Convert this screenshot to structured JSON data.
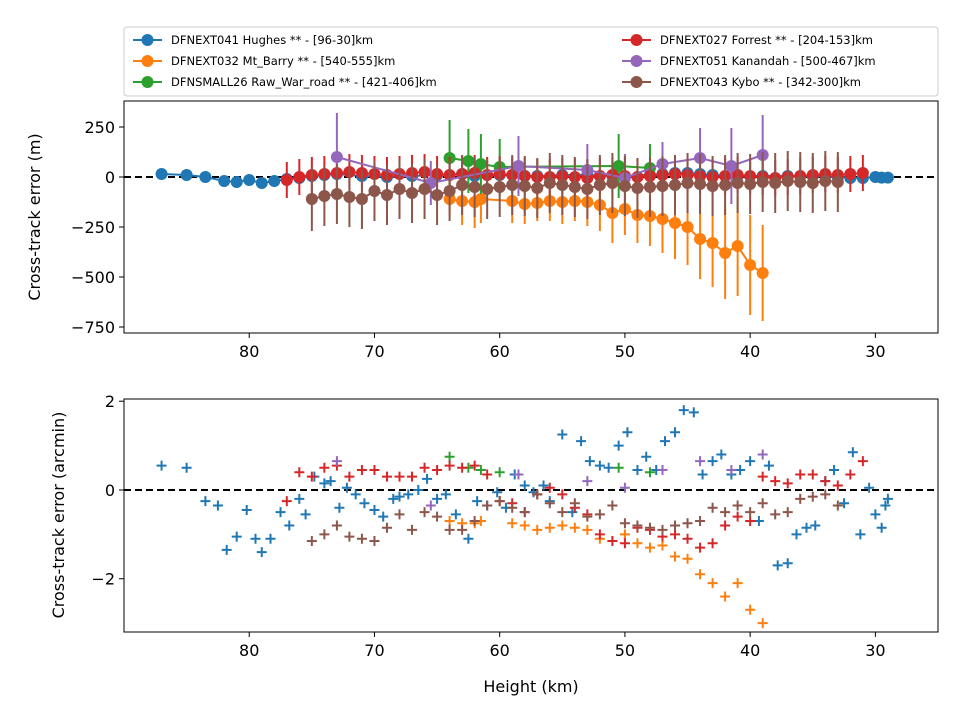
{
  "chart_data": [
    {
      "type": "line",
      "title": "",
      "xlabel": "",
      "ylabel": "Cross-track error (m)",
      "xlim": [
        90,
        25
      ],
      "ylim": [
        -780,
        380
      ],
      "xticks": [
        80,
        70,
        60,
        50,
        40,
        30
      ],
      "xtick_labels": [
        "80",
        "70",
        "60",
        "50",
        "40",
        "30"
      ],
      "yticks": [
        250,
        0,
        -250,
        -500,
        -750
      ],
      "ytick_labels": [
        "250",
        "0",
        "−250",
        "−500",
        "−750"
      ],
      "reference_line": 0,
      "legend_position": "top (above axes, two columns)",
      "series": [
        {
          "name": "DFNEXT041 Hughes **  - [96-30]km",
          "color": "#1f77b4",
          "x": [
            87,
            85,
            83.5,
            82,
            81,
            80,
            79,
            78,
            77,
            76,
            75,
            74,
            73,
            71,
            69,
            67,
            65,
            63,
            62,
            60,
            58,
            57,
            55,
            53,
            51,
            48,
            47,
            46,
            45,
            44,
            43,
            41,
            39,
            37,
            35,
            33,
            32,
            31,
            30,
            29.5,
            29
          ],
          "y": [
            15,
            10,
            0,
            -20,
            -25,
            -15,
            -30,
            -20,
            -10,
            -5,
            5,
            10,
            15,
            5,
            0,
            5,
            10,
            15,
            5,
            10,
            5,
            5,
            10,
            10,
            5,
            10,
            15,
            20,
            20,
            15,
            10,
            5,
            5,
            5,
            5,
            0,
            -5,
            -5,
            0,
            -3,
            -3
          ],
          "err": [
            25,
            25,
            25,
            25,
            25,
            25,
            25,
            25,
            25,
            25,
            25,
            25,
            25,
            25,
            25,
            25,
            25,
            25,
            25,
            25,
            25,
            25,
            25,
            25,
            25,
            25,
            25,
            25,
            25,
            25,
            25,
            25,
            25,
            25,
            25,
            25,
            20,
            20,
            15,
            15,
            15
          ]
        },
        {
          "name": "DFNEXT032 Mt_Barry **  - [540-555]km",
          "color": "#ff7f0e",
          "x": [
            64,
            63,
            62,
            61.5,
            59,
            58,
            57,
            56,
            55,
            54,
            53,
            52,
            51,
            50,
            49,
            48,
            47,
            46,
            45,
            44,
            43,
            42,
            41,
            40,
            39
          ],
          "y": [
            -110,
            -120,
            -125,
            -110,
            -120,
            -135,
            -130,
            -120,
            -125,
            -120,
            -125,
            -140,
            -180,
            -160,
            -190,
            -195,
            -210,
            -230,
            -250,
            -310,
            -330,
            -380,
            -345,
            -440,
            -480
          ],
          "err": [
            80,
            120,
            130,
            120,
            110,
            100,
            90,
            100,
            110,
            100,
            120,
            130,
            150,
            130,
            140,
            150,
            170,
            180,
            190,
            200,
            220,
            230,
            250,
            250,
            240
          ]
        },
        {
          "name": "DFNSMALL26 Raw_War_road **  - [421-406]km",
          "color": "#2ca02c",
          "x": [
            64,
            62.5,
            61.5,
            60,
            50.5,
            48
          ],
          "y": [
            95,
            80,
            65,
            50,
            55,
            45
          ],
          "err": [
            190,
            160,
            150,
            140,
            160,
            120
          ]
        },
        {
          "name": "DFNEXT027 Forrest **  - [204-153]km",
          "color": "#d62728",
          "x": [
            77,
            76,
            75,
            74,
            73,
            72,
            71,
            70,
            69,
            68,
            67,
            66,
            65,
            64,
            63,
            62,
            61,
            60,
            59,
            58,
            57,
            56,
            55,
            54,
            53,
            52,
            51,
            50,
            49,
            48,
            47,
            46,
            45,
            44,
            43,
            42,
            41,
            40,
            39,
            38,
            37,
            36,
            35,
            34,
            33,
            32,
            31
          ],
          "y": [
            -15,
            0,
            10,
            15,
            20,
            25,
            20,
            15,
            10,
            15,
            20,
            25,
            15,
            10,
            15,
            20,
            10,
            15,
            10,
            5,
            0,
            0,
            5,
            0,
            -5,
            5,
            10,
            5,
            0,
            5,
            10,
            15,
            10,
            5,
            0,
            5,
            10,
            5,
            0,
            -5,
            0,
            5,
            10,
            15,
            10,
            15,
            20
          ],
          "err": [
            90,
            90,
            90,
            90,
            90,
            90,
            90,
            90,
            90,
            90,
            90,
            90,
            90,
            90,
            90,
            90,
            90,
            90,
            90,
            90,
            90,
            90,
            90,
            90,
            90,
            90,
            90,
            90,
            90,
            90,
            90,
            90,
            90,
            90,
            90,
            90,
            90,
            90,
            90,
            90,
            90,
            90,
            90,
            90,
            90,
            90,
            90
          ]
        },
        {
          "name": "DFNEXT051 Kanandah - [500-467]km",
          "color": "#9467bd",
          "x": [
            73,
            65.5,
            58.5,
            53,
            50,
            47,
            44,
            41.5,
            39
          ],
          "y": [
            100,
            -30,
            55,
            35,
            -5,
            65,
            95,
            55,
            110
          ],
          "err": [
            220,
            110,
            150,
            130,
            120,
            110,
            150,
            190,
            200
          ]
        },
        {
          "name": "DFNEXT043 Kybo **  - [342-300]km",
          "color": "#8c564b",
          "x": [
            75,
            74,
            73,
            72,
            71,
            70,
            69,
            68,
            67,
            66,
            65,
            64,
            63,
            62,
            61,
            60,
            59,
            58,
            57,
            56,
            55,
            54,
            53,
            52,
            51,
            50,
            49,
            48,
            47,
            46,
            45,
            44,
            43,
            42,
            41,
            40,
            39,
            38,
            37,
            36,
            35,
            34,
            33
          ],
          "y": [
            -110,
            -95,
            -85,
            -100,
            -110,
            -70,
            -90,
            -60,
            -80,
            -60,
            -90,
            -70,
            -40,
            -50,
            -60,
            -50,
            -40,
            -45,
            -55,
            -30,
            -40,
            -50,
            -60,
            -40,
            -30,
            -45,
            -55,
            -50,
            -45,
            -40,
            -30,
            -35,
            -45,
            -40,
            -30,
            -35,
            -25,
            -30,
            -20,
            -25,
            -30,
            -20,
            -25
          ],
          "err": [
            160,
            150,
            150,
            150,
            150,
            150,
            150,
            150,
            150,
            150,
            150,
            150,
            150,
            150,
            150,
            150,
            150,
            150,
            150,
            150,
            150,
            150,
            150,
            150,
            150,
            150,
            150,
            150,
            150,
            150,
            150,
            150,
            150,
            150,
            150,
            150,
            150,
            150,
            150,
            150,
            150,
            150,
            150
          ]
        }
      ]
    },
    {
      "type": "scatter",
      "title": "",
      "xlabel": "Height (km)",
      "ylabel": "Cross-track error (arcmin)",
      "xlim": [
        90,
        25
      ],
      "ylim": [
        -3.2,
        2.05
      ],
      "xticks": [
        80,
        70,
        60,
        50,
        40,
        30
      ],
      "xtick_labels": [
        "80",
        "70",
        "60",
        "50",
        "40",
        "30"
      ],
      "yticks": [
        2,
        0,
        -2
      ],
      "ytick_labels": [
        "2",
        "0",
        "−2"
      ],
      "reference_line": 0,
      "marker": "+",
      "series": [
        {
          "name": "DFNEXT041 Hughes",
          "color": "#1f77b4",
          "x": [
            87,
            85,
            83.5,
            82.5,
            81.8,
            81,
            80.2,
            79.5,
            79,
            78.3,
            77.5,
            76.8,
            76,
            75.5,
            74.8,
            74,
            73.5,
            72.8,
            72.2,
            71.5,
            70.8,
            70,
            69.3,
            68.5,
            68,
            67.3,
            66.5,
            65.8,
            65,
            64.3,
            63.5,
            62.5,
            61.8,
            61,
            60.2,
            59.5,
            58.8,
            58,
            57.3,
            56.5,
            56,
            55,
            54.2,
            53.5,
            52.8,
            52,
            51.3,
            50.5,
            49.8,
            49,
            48.3,
            47.5,
            46.8,
            46,
            45.3,
            44.5,
            43.8,
            43,
            42.3,
            41.5,
            40.8,
            40,
            39.3,
            38.5,
            37.8,
            37,
            36.3,
            35.5,
            34.8,
            34,
            33.3,
            32.5,
            31.8,
            31.2,
            30.5,
            30,
            29.5,
            29.2,
            29
          ],
          "y": [
            0.55,
            0.5,
            -0.25,
            -0.35,
            -1.35,
            -1.05,
            -0.45,
            -1.1,
            -1.4,
            -1.1,
            -0.5,
            -0.8,
            -0.2,
            -0.55,
            0.3,
            0.15,
            0.2,
            -0.4,
            0.05,
            -0.1,
            -0.3,
            -0.45,
            -0.6,
            -0.2,
            -0.15,
            -0.1,
            0.0,
            0.25,
            -0.2,
            -0.1,
            -0.55,
            -1.1,
            -0.25,
            -0.35,
            -0.05,
            -0.4,
            0.35,
            0.1,
            -0.05,
            0.1,
            -0.25,
            1.25,
            -0.5,
            1.1,
            0.65,
            0.55,
            0.5,
            1.0,
            1.3,
            0.45,
            0.75,
            0.45,
            1.1,
            1.3,
            1.8,
            1.75,
            0.35,
            0.65,
            0.8,
            0.35,
            0.45,
            0.65,
            -0.7,
            0.55,
            -1.7,
            -1.65,
            -1.0,
            -0.85,
            -0.8,
            0.2,
            0.45,
            -0.3,
            0.85,
            -1.0,
            0.05,
            -0.55,
            -0.85,
            -0.35,
            -0.2
          ],
          "note": "approximate reading of scattered markers"
        },
        {
          "name": "DFNEXT032 Mt_Barry",
          "color": "#ff7f0e",
          "x": [
            64,
            63,
            62,
            61.5,
            59,
            58,
            57,
            56,
            55,
            54,
            53,
            52,
            51,
            50,
            49,
            48,
            47,
            46,
            45,
            44,
            43,
            42,
            41,
            40,
            39
          ],
          "y": [
            -0.7,
            -0.75,
            -0.75,
            -0.7,
            -0.75,
            -0.8,
            -0.9,
            -0.85,
            -0.8,
            -0.85,
            -0.9,
            -1.1,
            -1.15,
            -1.0,
            -1.2,
            -1.3,
            -1.25,
            -1.5,
            -1.55,
            -1.9,
            -2.1,
            -2.4,
            -2.1,
            -2.7,
            -3.0
          ]
        },
        {
          "name": "DFNSMALL26 Raw_War_road",
          "color": "#2ca02c",
          "x": [
            64,
            62.5,
            61.5,
            60,
            50.5,
            48
          ],
          "y": [
            0.75,
            0.5,
            0.45,
            0.4,
            0.5,
            0.4
          ]
        },
        {
          "name": "DFNEXT027 Forrest",
          "color": "#d62728",
          "x": [
            77,
            76,
            75,
            74,
            73,
            72,
            71,
            70,
            69,
            68,
            67,
            66,
            65,
            64,
            63,
            62,
            61,
            60,
            59,
            58,
            57,
            56,
            55,
            54,
            53,
            52,
            51,
            50,
            49,
            48,
            47,
            46,
            45,
            44,
            43,
            42,
            41,
            40,
            39,
            38,
            37,
            36,
            35,
            34,
            33,
            32,
            31
          ],
          "y": [
            -0.25,
            0.4,
            0.3,
            0.5,
            0.55,
            0.3,
            0.45,
            0.45,
            0.3,
            0.3,
            0.3,
            0.5,
            0.45,
            0.55,
            0.5,
            0.55,
            0.35,
            -0.25,
            -0.3,
            -0.5,
            -0.1,
            0.05,
            -0.1,
            -0.4,
            -0.55,
            -1.0,
            -1.15,
            -1.2,
            -0.85,
            -0.9,
            -1.05,
            -1.0,
            -1.1,
            -1.3,
            -1.2,
            -0.8,
            -0.6,
            -0.7,
            0.3,
            0.2,
            0.15,
            0.35,
            0.35,
            0.2,
            0.1,
            0.35,
            0.65
          ]
        },
        {
          "name": "DFNEXT051 Kanandah",
          "color": "#9467bd",
          "x": [
            73,
            65.5,
            58.5,
            53,
            50,
            47,
            44,
            41.5,
            39
          ],
          "y": [
            0.65,
            -0.35,
            0.35,
            0.2,
            0.05,
            0.45,
            0.65,
            0.45,
            0.8
          ]
        },
        {
          "name": "DFNEXT043 Kybo",
          "color": "#8c564b",
          "x": [
            75,
            74,
            73,
            72,
            71,
            70,
            69,
            68,
            67,
            66,
            65,
            64,
            63,
            62,
            61,
            60,
            59,
            58,
            57,
            56,
            55,
            54,
            53,
            52,
            51,
            50,
            49,
            48,
            47,
            46,
            45,
            44,
            43,
            42,
            41,
            40,
            39,
            38,
            37,
            36,
            35,
            34,
            33
          ],
          "y": [
            -1.15,
            -1.0,
            -0.8,
            -1.05,
            -1.1,
            -1.15,
            -0.85,
            -0.55,
            -0.9,
            -0.5,
            -0.6,
            -0.9,
            -0.9,
            -0.7,
            -0.35,
            -0.25,
            -0.4,
            -0.5,
            -0.1,
            -0.3,
            -0.5,
            -0.3,
            -0.6,
            -0.55,
            -0.35,
            -0.75,
            -0.8,
            -0.85,
            -0.9,
            -0.8,
            -0.75,
            -0.7,
            -0.4,
            -0.5,
            -0.35,
            -0.5,
            -0.3,
            -0.55,
            -0.5,
            -0.2,
            -0.15,
            -0.1,
            -0.35
          ]
        }
      ]
    }
  ]
}
